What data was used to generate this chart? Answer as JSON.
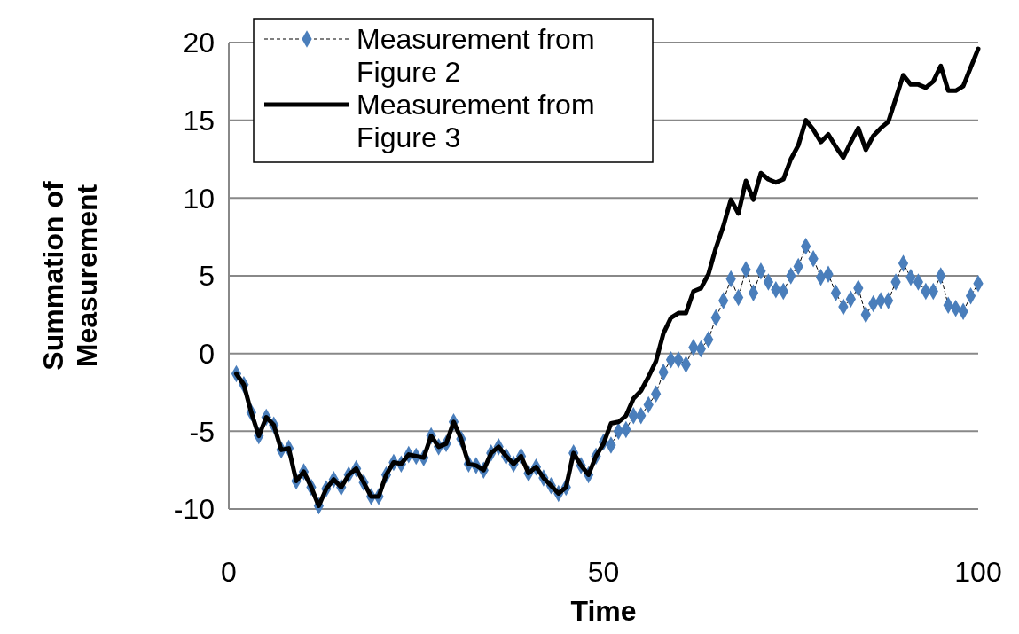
{
  "chart_data": {
    "type": "line",
    "xlabel": "Time",
    "ylabel": "Summation of Measurement",
    "x": [
      1,
      2,
      3,
      4,
      5,
      6,
      7,
      8,
      9,
      10,
      11,
      12,
      13,
      14,
      15,
      16,
      17,
      18,
      19,
      20,
      21,
      22,
      23,
      24,
      25,
      26,
      27,
      28,
      29,
      30,
      31,
      32,
      33,
      34,
      35,
      36,
      37,
      38,
      39,
      40,
      41,
      42,
      43,
      44,
      45,
      46,
      47,
      48,
      49,
      50,
      51,
      52,
      53,
      54,
      55,
      56,
      57,
      58,
      59,
      60,
      61,
      62,
      63,
      64,
      65,
      66,
      67,
      68,
      69,
      70,
      71,
      72,
      73,
      74,
      75,
      76,
      77,
      78,
      79,
      80,
      81,
      82,
      83,
      84,
      85,
      86,
      87,
      88,
      89,
      90,
      91,
      92,
      93,
      94,
      95,
      96,
      97,
      98,
      99,
      100
    ],
    "series": [
      {
        "name": "Measurement from Figure 2",
        "color": "#4a7ebb",
        "marker": "diamond",
        "line_style": "dashed",
        "values": [
          -1.3,
          -2.0,
          -3.8,
          -5.3,
          -4.1,
          -4.6,
          -6.2,
          -6.1,
          -8.2,
          -7.6,
          -8.6,
          -9.8,
          -8.7,
          -8.1,
          -8.6,
          -7.8,
          -7.4,
          -8.3,
          -9.2,
          -9.2,
          -7.8,
          -7.0,
          -7.1,
          -6.5,
          -6.6,
          -6.7,
          -5.3,
          -6.0,
          -5.8,
          -4.4,
          -5.5,
          -7.1,
          -7.2,
          -7.5,
          -6.4,
          -6.0,
          -6.6,
          -7.1,
          -6.6,
          -7.7,
          -7.3,
          -8.0,
          -8.5,
          -9.0,
          -8.6,
          -6.4,
          -7.2,
          -7.8,
          -6.6,
          -5.7,
          -5.9,
          -5.0,
          -4.9,
          -4.0,
          -4.0,
          -3.3,
          -2.6,
          -1.2,
          -0.4,
          -0.4,
          -0.7,
          0.4,
          0.3,
          0.9,
          2.3,
          3.4,
          4.8,
          3.6,
          5.4,
          3.9,
          5.3,
          4.6,
          4.1,
          4.0,
          5.0,
          5.6,
          6.9,
          6.1,
          4.9,
          5.1,
          3.9,
          3.0,
          3.5,
          4.2,
          2.5,
          3.2,
          3.4,
          3.4,
          4.6,
          5.8,
          4.9,
          4.6,
          4.0,
          4.0,
          5.0,
          3.1,
          2.9,
          2.7,
          3.7,
          4.5
        ]
      },
      {
        "name": "Measurement from Figure 3",
        "color": "#000000",
        "marker": "none",
        "line_style": "solid",
        "values": [
          -1.3,
          -2.0,
          -3.8,
          -5.3,
          -4.1,
          -4.6,
          -6.2,
          -6.1,
          -8.2,
          -7.6,
          -8.6,
          -9.8,
          -8.7,
          -8.1,
          -8.6,
          -7.8,
          -7.4,
          -8.3,
          -9.2,
          -9.2,
          -7.8,
          -7.0,
          -7.1,
          -6.5,
          -6.6,
          -6.7,
          -5.3,
          -6.0,
          -5.8,
          -4.4,
          -5.5,
          -7.1,
          -7.2,
          -7.5,
          -6.4,
          -6.0,
          -6.6,
          -7.1,
          -6.6,
          -7.7,
          -7.3,
          -8.0,
          -8.5,
          -9.0,
          -8.6,
          -6.4,
          -7.2,
          -7.8,
          -6.6,
          -5.8,
          -4.5,
          -4.4,
          -4.0,
          -2.9,
          -2.4,
          -1.5,
          -0.5,
          1.3,
          2.3,
          2.6,
          2.6,
          4.0,
          4.2,
          5.1,
          6.8,
          8.2,
          9.9,
          9.0,
          11.1,
          9.9,
          11.6,
          11.2,
          11.0,
          11.2,
          12.5,
          13.4,
          15.0,
          14.4,
          13.6,
          14.1,
          13.3,
          12.6,
          13.6,
          14.5,
          13.1,
          14.0,
          14.5,
          14.9,
          16.4,
          17.9,
          17.3,
          17.3,
          17.1,
          17.5,
          18.5,
          16.9,
          16.9,
          17.2,
          18.4,
          19.6
        ]
      }
    ],
    "xlim": [
      0,
      100
    ],
    "xticks": [
      0,
      50,
      100
    ],
    "ylim": [
      -10,
      20
    ],
    "yticks": [
      -10,
      -5,
      0,
      5,
      10,
      15,
      20
    ],
    "grid": "y",
    "legend": "top left"
  }
}
